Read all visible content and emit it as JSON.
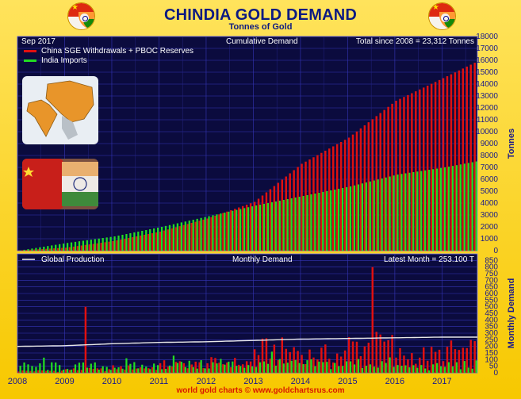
{
  "header": {
    "title": "CHINDIA GOLD DEMAND",
    "subtitle": "Tonnes of Gold"
  },
  "footer": {
    "credit": "world gold charts © www.goldchartsrus.com"
  },
  "colors": {
    "china": "#e01010",
    "india": "#22dd22",
    "production": "#e8e8e8",
    "panel_bg": "#0b0b3e",
    "grid": "#3535b8",
    "axis_text": "#1a1a8a",
    "title": "#0c1a82"
  },
  "icons": [
    "china-flag-icon",
    "india-flag-icon",
    "map-icon",
    "flags-icon"
  ],
  "chart_data": [
    {
      "type": "bar",
      "name": "cumulative",
      "date_label": "Sep  2017",
      "panel_title": "Cumulative Demand",
      "total_label": "Total since 2008 = 23,312 Tonnes",
      "ylabel": "Tonnes",
      "ylim": [
        0,
        18000
      ],
      "yticks": [
        "0",
        "1000",
        "2000",
        "3000",
        "4000",
        "5000",
        "6000",
        "7000",
        "8000",
        "9000",
        "10000",
        "11000",
        "12000",
        "13000",
        "14000",
        "15000",
        "16000",
        "17000",
        "18000"
      ],
      "legend": [
        {
          "label": "China SGE Withdrawals + PBOC Reserves",
          "color": "#e01010"
        },
        {
          "label": "India Imports",
          "color": "#22dd22"
        }
      ],
      "start": "2008-01",
      "end": "2017-09",
      "series": [
        {
          "name": "China SGE Withdrawals + PBOC Reserves",
          "stack": "total",
          "points": [
            [
              2008.0,
              20
            ],
            [
              2009.0,
              250
            ],
            [
              2010.0,
              800
            ],
            [
              2011.0,
              1600
            ],
            [
              2012.0,
              2700
            ],
            [
              2013.0,
              4100
            ],
            [
              2014.0,
              7300
            ],
            [
              2015.0,
              9500
            ],
            [
              2016.0,
              12600
            ],
            [
              2017.0,
              14500
            ],
            [
              2017.67,
              15800
            ]
          ]
        },
        {
          "name": "India Imports",
          "points": [
            [
              2008.0,
              20
            ],
            [
              2009.0,
              650
            ],
            [
              2010.0,
              1200
            ],
            [
              2011.0,
              2000
            ],
            [
              2012.0,
              2900
            ],
            [
              2013.0,
              3800
            ],
            [
              2014.0,
              4600
            ],
            [
              2015.0,
              5400
            ],
            [
              2016.0,
              6400
            ],
            [
              2017.0,
              7000
            ],
            [
              2017.67,
              7500
            ]
          ]
        }
      ]
    },
    {
      "type": "bar",
      "name": "monthly",
      "production_label": "Global Production",
      "panel_title": "Monthly Demand",
      "latest_label": "Latest Month = 253.100 T",
      "ylabel": "Monthly Demand",
      "ylim": [
        0,
        900
      ],
      "yticks": [
        "0",
        "50",
        "100",
        "150",
        "200",
        "250",
        "300",
        "350",
        "400",
        "450",
        "500",
        "550",
        "600",
        "650",
        "700",
        "750",
        "800",
        "850"
      ],
      "xticks": [
        "2008",
        "2009",
        "2010",
        "2011",
        "2012",
        "2013",
        "2014",
        "2015",
        "2016",
        "2017"
      ],
      "series": [
        {
          "name": "China",
          "values_note": "monthly tonnes",
          "base_by_year": {
            "2008": 15,
            "2009": 25,
            "2010": 40,
            "2011": 65,
            "2012": 80,
            "2013": 180,
            "2014": 145,
            "2015": 215,
            "2016": 140,
            "2017": 170
          },
          "spikes": [
            [
              2009.42,
              500
            ],
            [
              2015.5,
              800
            ],
            [
              2015.58,
              310
            ],
            [
              2015.67,
              290
            ]
          ]
        },
        {
          "name": "India",
          "values_note": "monthly tonnes",
          "base_by_year": {
            "2008": 55,
            "2009": 55,
            "2010": 55,
            "2011": 65,
            "2012": 70,
            "2013": 70,
            "2014": 70,
            "2015": 80,
            "2016": 50,
            "2017": 65
          },
          "spikes": [
            [
              2008.5,
              115
            ],
            [
              2010.25,
              110
            ],
            [
              2011.25,
              130
            ],
            [
              2012.25,
              105
            ],
            [
              2013.33,
              160
            ]
          ]
        },
        {
          "name": "Global Production",
          "points": [
            [
              2008.0,
              200
            ],
            [
              2009.0,
              205
            ],
            [
              2010.0,
              220
            ],
            [
              2011.0,
              230
            ],
            [
              2012.0,
              235
            ],
            [
              2013.0,
              245
            ],
            [
              2014.0,
              255
            ],
            [
              2015.0,
              260
            ],
            [
              2016.0,
              265
            ],
            [
              2017.0,
              270
            ],
            [
              2017.67,
              270
            ]
          ]
        }
      ]
    }
  ]
}
